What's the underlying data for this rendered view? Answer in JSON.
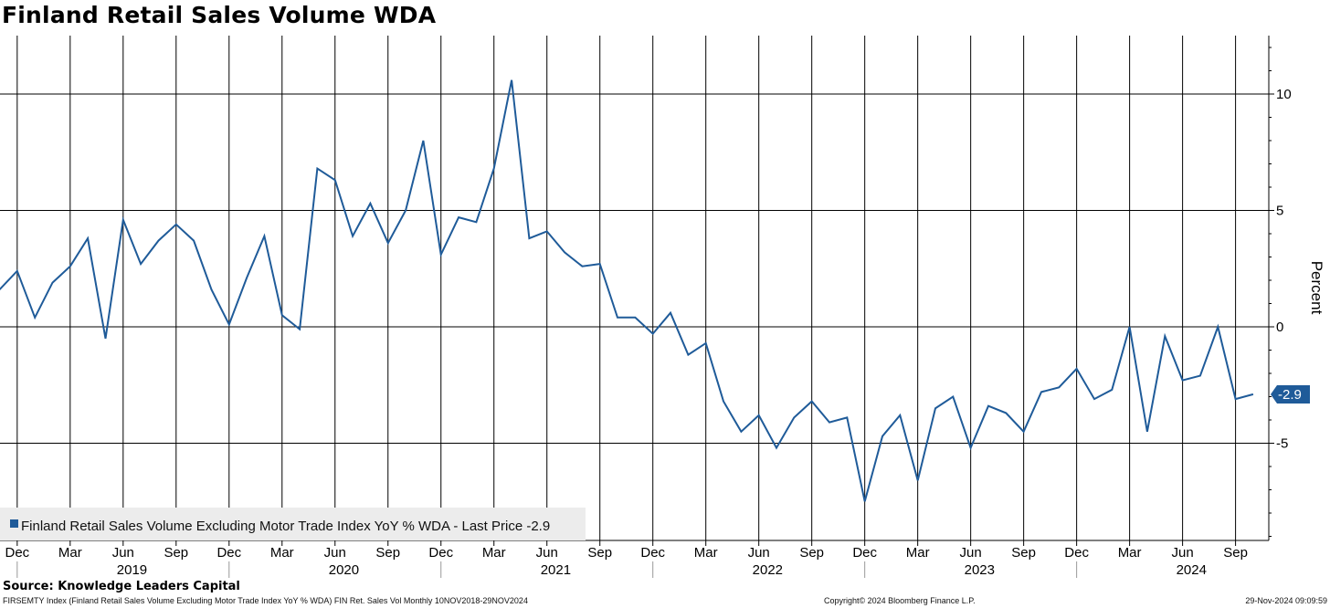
{
  "title": "Finland Retail Sales Volume WDA",
  "source": "Source: Knowledge Leaders Capital",
  "footer": {
    "left": "FIRSEMTY Index (Finland Retail Sales Volume Excluding Motor Trade Index YoY % WDA) FIN Ret. Sales Vol  Monthly 10NOV2018-29NOV2024",
    "middle": "Copyright© 2024 Bloomberg Finance L.P.",
    "right": "29-Nov-2024 09:09:59"
  },
  "colors": {
    "line": "#1f5b99",
    "grid": "#000000",
    "legend_bg": "#ececec"
  },
  "chart_data": {
    "type": "line",
    "title": "Finland Retail Sales Volume WDA",
    "ylabel": "Percent",
    "ylim": [
      -9.2,
      12.5
    ],
    "yticks": [
      10,
      5,
      0,
      -5
    ],
    "y_axis_side": "right",
    "grid": true,
    "legend_position": "bottom-left",
    "month_ticks": [
      "Dec",
      "Mar",
      "Jun",
      "Sep",
      "Dec",
      "Mar",
      "Jun",
      "Sep",
      "Dec",
      "Mar",
      "Jun",
      "Sep",
      "Dec",
      "Mar",
      "Jun",
      "Sep",
      "Dec",
      "Mar",
      "Jun",
      "Sep",
      "Dec",
      "Mar",
      "Jun",
      "Sep"
    ],
    "year_labels": [
      "2019",
      "2020",
      "2021",
      "2022",
      "2023",
      "2024"
    ],
    "series": [
      {
        "name": "Finland Retail Sales Volume Excluding Motor Trade Index YoY % WDA - Last Price -2.9",
        "last_value": "-2.9",
        "x": [
          "2018-11",
          "2018-12",
          "2019-01",
          "2019-02",
          "2019-03",
          "2019-04",
          "2019-05",
          "2019-06",
          "2019-07",
          "2019-08",
          "2019-09",
          "2019-10",
          "2019-11",
          "2019-12",
          "2020-01",
          "2020-02",
          "2020-03",
          "2020-04",
          "2020-05",
          "2020-06",
          "2020-07",
          "2020-08",
          "2020-09",
          "2020-10",
          "2020-11",
          "2020-12",
          "2021-01",
          "2021-02",
          "2021-03",
          "2021-04",
          "2021-05",
          "2021-06",
          "2021-07",
          "2021-08",
          "2021-09",
          "2021-10",
          "2021-11",
          "2021-12",
          "2022-01",
          "2022-02",
          "2022-03",
          "2022-04",
          "2022-05",
          "2022-06",
          "2022-07",
          "2022-08",
          "2022-09",
          "2022-10",
          "2022-11",
          "2022-12",
          "2023-01",
          "2023-02",
          "2023-03",
          "2023-04",
          "2023-05",
          "2023-06",
          "2023-07",
          "2023-08",
          "2023-09",
          "2023-10",
          "2023-11",
          "2023-12",
          "2024-01",
          "2024-02",
          "2024-03",
          "2024-04",
          "2024-05",
          "2024-06",
          "2024-07",
          "2024-08",
          "2024-09",
          "2024-10"
        ],
        "values": [
          1.6,
          2.4,
          0.4,
          1.9,
          2.6,
          3.8,
          -0.5,
          4.6,
          2.7,
          3.7,
          4.4,
          3.7,
          1.6,
          0.1,
          2.1,
          3.9,
          0.5,
          -0.1,
          6.8,
          6.3,
          3.9,
          5.3,
          3.6,
          5.0,
          8.0,
          3.1,
          4.7,
          4.5,
          6.8,
          10.6,
          3.8,
          4.1,
          3.2,
          2.6,
          2.7,
          0.4,
          0.4,
          -0.3,
          0.6,
          -1.2,
          -0.7,
          -3.2,
          -4.5,
          -3.8,
          -5.2,
          -3.9,
          -3.2,
          -4.1,
          -3.9,
          -7.5,
          -4.7,
          -3.8,
          -6.6,
          -3.5,
          -3.0,
          -5.2,
          -3.4,
          -3.7,
          -4.5,
          -2.8,
          -2.6,
          -1.8,
          -3.1,
          -2.7,
          0.0,
          -4.5,
          -0.4,
          -2.3,
          -2.1,
          0.0,
          -3.1,
          -2.9
        ]
      }
    ]
  }
}
